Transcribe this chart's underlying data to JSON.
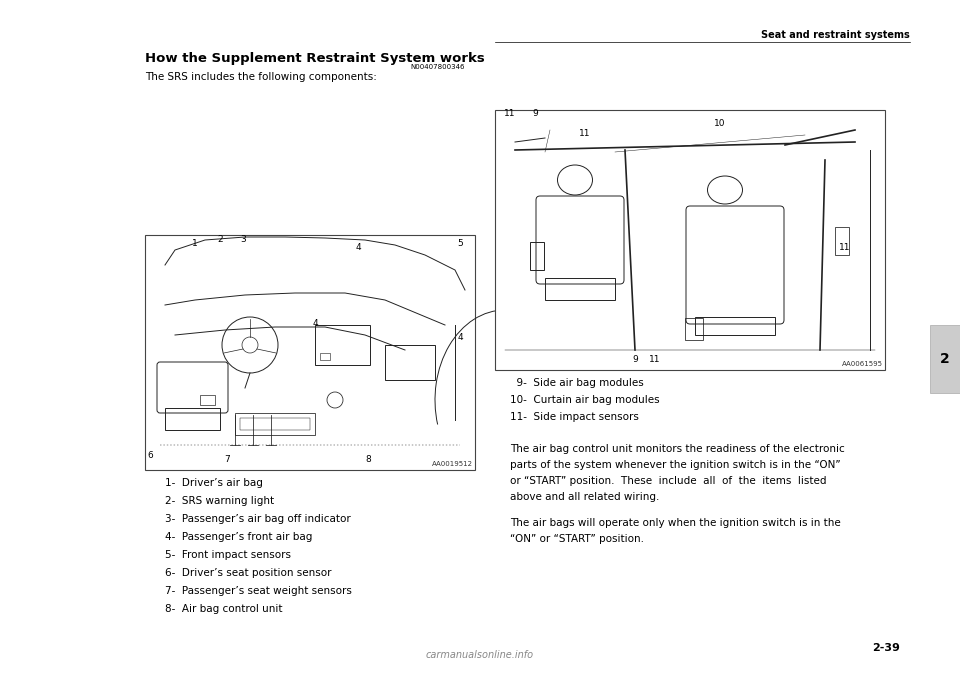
{
  "background_color": "#ffffff",
  "page_width": 9.6,
  "page_height": 6.78,
  "header_text": "Seat and restraint systems",
  "chapter_num": "2",
  "page_num": "2-39",
  "section_title": "How the Supplement Restraint System works",
  "ref_code_left": "N00407800346",
  "ref_code_right": "AA0019512",
  "ref_code_right2": "AA0061595",
  "intro_text": "The SRS includes the following components:",
  "list_items_left": [
    "1-  Driver’s air bag",
    "2-  SRS warning light",
    "3-  Passenger’s air bag off indicator",
    "4-  Passenger’s front air bag",
    "5-  Front impact sensors",
    "6-  Driver’s seat position sensor",
    "7-  Passenger’s seat weight sensors",
    "8-  Air bag control unit"
  ],
  "list_items_right": [
    "  9-  Side air bag modules",
    "10-  Curtain air bag modules",
    "11-  Side impact sensors"
  ],
  "body_text_1": "The air bag control unit monitors the readiness of the electronic\nparts of the system whenever the ignition switch is in the “ON”\nor “START” position.  These  include  all  of  the  items  listed\nabove and all related wiring.",
  "body_text_2": "The air bags will operate only when the ignition switch is in the\n“ON” or “START” position.",
  "watermark_text": "carmanualsonline.info"
}
